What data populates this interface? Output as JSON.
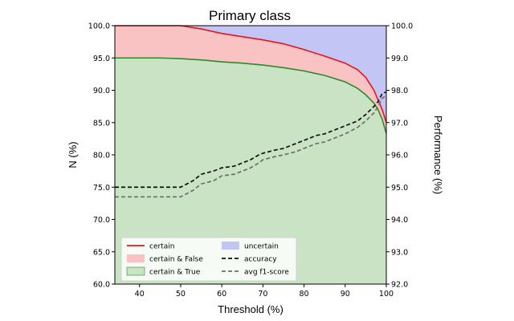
{
  "chart_data": {
    "type": "area",
    "title": "Primary class",
    "xlabel": "Threshold  (%)",
    "ylabel_left": "N (%)",
    "ylabel_right": "Performance (%)",
    "xlim": [
      34,
      100
    ],
    "ylim_left": [
      60,
      100
    ],
    "ylim_right": [
      92,
      100
    ],
    "x_ticks": [
      "40",
      "50",
      "60",
      "70",
      "80",
      "90",
      "100"
    ],
    "y_left_ticks": [
      "60.0",
      "65.0",
      "70.0",
      "75.0",
      "80.0",
      "85.0",
      "90.0",
      "95.0",
      "100.0"
    ],
    "y_right_ticks": [
      "92.0",
      "93.0",
      "94.0",
      "95.0",
      "96.0",
      "97.0",
      "98.0",
      "99.0",
      "100.0"
    ],
    "grid": false,
    "legend_position": "lower-left",
    "series": [
      {
        "name": "certain",
        "axis": "left",
        "color": "#e8141b",
        "x": [
          34,
          40,
          45,
          50,
          55,
          60,
          65,
          70,
          75,
          80,
          85,
          90,
          93,
          95,
          97,
          98,
          99,
          100
        ],
        "y": [
          100,
          100,
          100,
          100,
          99.5,
          98.8,
          98.3,
          97.8,
          97.2,
          96.3,
          95.3,
          94.2,
          93.2,
          92.0,
          90.0,
          88.5,
          87.0,
          85.0
        ]
      },
      {
        "name": "certain & True",
        "axis": "left",
        "color": "#2b8a2b",
        "fill": "#c9e3c4",
        "x": [
          34,
          40,
          45,
          50,
          55,
          60,
          65,
          70,
          75,
          80,
          85,
          90,
          93,
          95,
          97,
          98,
          99,
          100
        ],
        "y": [
          95,
          95,
          95,
          94.9,
          94.7,
          94.4,
          94.2,
          93.9,
          93.5,
          93.0,
          92.3,
          91.3,
          90.3,
          89.3,
          88.0,
          87.0,
          85.5,
          83.3
        ]
      },
      {
        "name": "certain & False",
        "fill": "#f9c3c3"
      },
      {
        "name": "uncertain",
        "fill": "#c3c5f5"
      },
      {
        "name": "accuracy",
        "axis": "right",
        "color": "#111111",
        "x": [
          34,
          40,
          45,
          50,
          53,
          55,
          58,
          60,
          63,
          65,
          67,
          69,
          70,
          73,
          75,
          78,
          80,
          83,
          85,
          88,
          90,
          93,
          95,
          97,
          98,
          99,
          100
        ],
        "y": [
          95.0,
          95.0,
          95.0,
          95.0,
          95.2,
          95.4,
          95.5,
          95.6,
          95.65,
          95.75,
          95.85,
          96.0,
          96.05,
          96.15,
          96.2,
          96.35,
          96.45,
          96.6,
          96.65,
          96.8,
          96.9,
          97.05,
          97.25,
          97.5,
          97.65,
          97.9,
          97.95
        ]
      },
      {
        "name": "avg f1-score",
        "axis": "right",
        "color": "#6e6e6e",
        "x": [
          34,
          40,
          45,
          50,
          53,
          55,
          58,
          60,
          63,
          65,
          67,
          69,
          70,
          73,
          75,
          78,
          80,
          83,
          85,
          88,
          90,
          93,
          95,
          97,
          98,
          99,
          100
        ],
        "y": [
          94.7,
          94.7,
          94.7,
          94.7,
          94.9,
          95.1,
          95.2,
          95.35,
          95.4,
          95.5,
          95.6,
          95.75,
          95.85,
          95.95,
          96.0,
          96.1,
          96.2,
          96.35,
          96.4,
          96.55,
          96.65,
          96.85,
          97.05,
          97.3,
          97.5,
          97.75,
          97.85
        ]
      }
    ],
    "legend": [
      [
        "certain",
        "uncertain"
      ],
      [
        "certain & False",
        "accuracy"
      ],
      [
        "certain & True",
        "avg f1-score"
      ]
    ]
  }
}
